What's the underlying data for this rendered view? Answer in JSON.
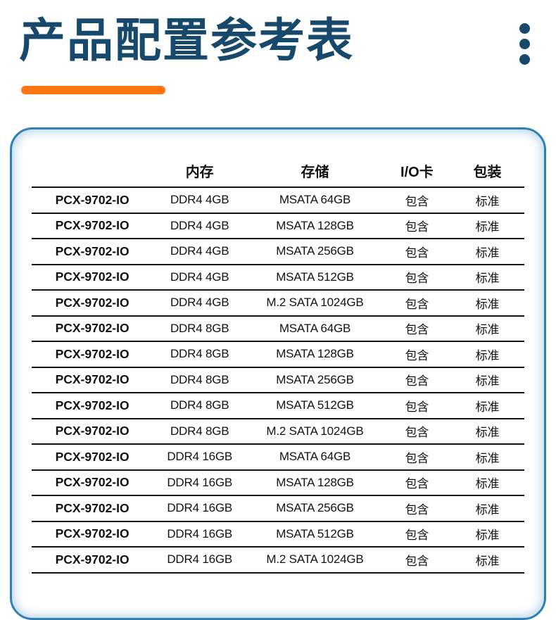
{
  "header": {
    "title": "产品配置参考表",
    "title_color": "#17496d",
    "accent_color": "#ff7411",
    "menu_icon": "kebab-vertical-dots"
  },
  "card": {
    "border_color": "#2e7fb4",
    "glow_color": "#a8cfe8"
  },
  "table": {
    "columns": [
      "",
      "内存",
      "存储",
      "I/O卡",
      "包装"
    ],
    "column_keys": [
      "model",
      "memory",
      "storage",
      "io-card",
      "packaging"
    ],
    "rows": [
      [
        "PCX-9702-IO",
        "DDR4 4GB",
        "MSATA 64GB",
        "包含",
        "标准"
      ],
      [
        "PCX-9702-IO",
        "DDR4 4GB",
        "MSATA 128GB",
        "包含",
        "标准"
      ],
      [
        "PCX-9702-IO",
        "DDR4 4GB",
        "MSATA 256GB",
        "包含",
        "标准"
      ],
      [
        "PCX-9702-IO",
        "DDR4 4GB",
        "MSATA 512GB",
        "包含",
        "标准"
      ],
      [
        "PCX-9702-IO",
        "DDR4 4GB",
        "M.2 SATA 1024GB",
        "包含",
        "标准"
      ],
      [
        "PCX-9702-IO",
        "DDR4 8GB",
        "MSATA 64GB",
        "包含",
        "标准"
      ],
      [
        "PCX-9702-IO",
        "DDR4 8GB",
        "MSATA 128GB",
        "包含",
        "标准"
      ],
      [
        "PCX-9702-IO",
        "DDR4 8GB",
        "MSATA 256GB",
        "包含",
        "标准"
      ],
      [
        "PCX-9702-IO",
        "DDR4 8GB",
        "MSATA 512GB",
        "包含",
        "标准"
      ],
      [
        "PCX-9702-IO",
        "DDR4 8GB",
        "M.2 SATA 1024GB",
        "包含",
        "标准"
      ],
      [
        "PCX-9702-IO",
        "DDR4 16GB",
        "MSATA 64GB",
        "包含",
        "标准"
      ],
      [
        "PCX-9702-IO",
        "DDR4 16GB",
        "MSATA 128GB",
        "包含",
        "标准"
      ],
      [
        "PCX-9702-IO",
        "DDR4 16GB",
        "MSATA 256GB",
        "包含",
        "标准"
      ],
      [
        "PCX-9702-IO",
        "DDR4 16GB",
        "MSATA 512GB",
        "包含",
        "标准"
      ],
      [
        "PCX-9702-IO",
        "DDR4 16GB",
        "M.2 SATA 1024GB",
        "包含",
        "标准"
      ]
    ]
  }
}
